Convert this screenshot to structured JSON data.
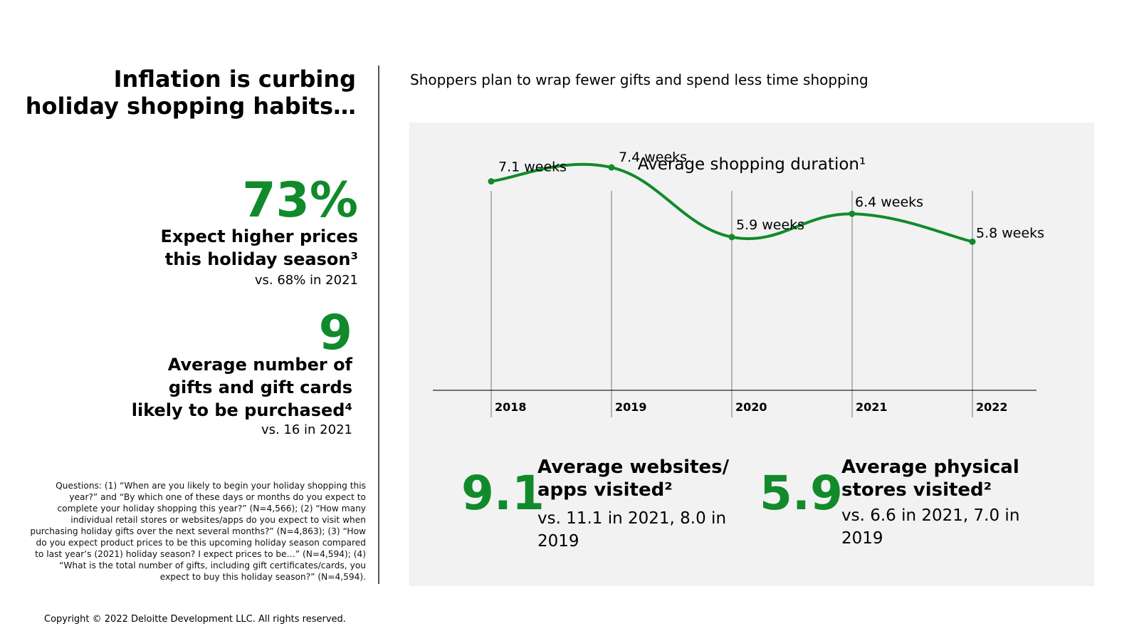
{
  "title": {
    "line1": "Inflation is curbing",
    "line2": "holiday shopping habits…"
  },
  "subtitle": "Shoppers plan to wrap fewer gifts and spend less time shopping",
  "stats": {
    "prices": {
      "value": "73%",
      "label_line1": "Expect higher prices",
      "label_line2": "this holiday season³",
      "comparison": "vs. 68% in 2021"
    },
    "gifts": {
      "value": "9",
      "label_line1": "Average number of",
      "label_line2": "gifts and gift cards",
      "label_line3": "likely to be purchased⁴",
      "comparison": "vs. 16 in 2021"
    }
  },
  "notes": "Questions: (1) “When are you likely to begin your holiday shopping this year?” and “By which one of these days or months do you expect to complete your holiday shopping this year?” (N=4,566); (2) “How many individual retail stores or websites/apps do you expect to visit when purchasing holiday gifts over the next several months?” (N=4,863); (3) “How do you expect product prices to be this upcoming holiday season compared to last year’s (2021) holiday season? I expect prices to be…” (N=4,594); (4) “What is the total number of gifts, including gift certificates/cards, you expect to buy this holiday season?” (N=4,594).",
  "copyright": "Copyright © 2022 Deloitte Development LLC. All rights reserved.",
  "kpis": {
    "websites": {
      "value": "9.1",
      "label_line1": "Average websites/",
      "label_line2": "apps visited²",
      "comparison": "vs. 11.1 in 2021, 8.0 in 2019"
    },
    "stores": {
      "value": "5.9",
      "label_line1": "Average physical",
      "label_line2": "stores visited²",
      "comparison": "vs. 6.6 in 2021, 7.0 in 2019"
    }
  },
  "colors": {
    "accent": "#118a2b",
    "panel": "#f2f2f2"
  },
  "chart_data": {
    "type": "line",
    "title": "Average shopping duration¹",
    "categories": [
      "2018",
      "2019",
      "2020",
      "2021",
      "2022"
    ],
    "values": [
      7.1,
      7.4,
      5.9,
      6.4,
      5.8
    ],
    "data_labels": [
      "7.1 weeks",
      "7.4 weeks",
      "5.9 weeks",
      "6.4 weeks",
      "5.8 weeks"
    ],
    "unit": "weeks",
    "xlabel": "",
    "ylabel": "",
    "grid": "vertical",
    "legend": "none"
  }
}
